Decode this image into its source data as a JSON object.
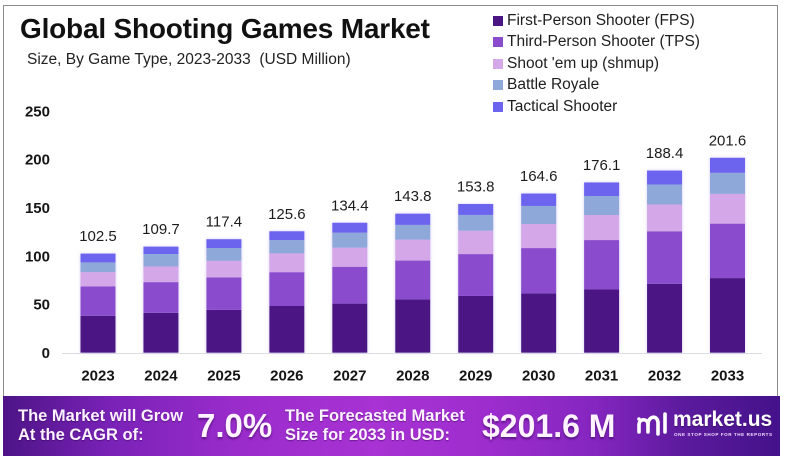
{
  "chart_data": {
    "type": "bar",
    "stacked": true,
    "title": "Global Shooting Games Market",
    "subtitle": "Size, By Game Type, 2023-2033  (USD Million)",
    "xlabel": "",
    "ylabel": "",
    "ylim": [
      0,
      250
    ],
    "yticks": [
      0,
      50,
      100,
      150,
      200,
      250
    ],
    "grid": false,
    "legend_position": "top-right",
    "categories": [
      "2023",
      "2024",
      "2025",
      "2026",
      "2027",
      "2028",
      "2029",
      "2030",
      "2031",
      "2032",
      "2033"
    ],
    "totals": [
      102.5,
      109.7,
      117.4,
      125.6,
      134.4,
      143.8,
      153.8,
      164.6,
      176.1,
      188.4,
      201.6
    ],
    "series": [
      {
        "name": "First-Person Shooter (FPS)",
        "color": "#4b1684",
        "values": [
          38.1,
          41.2,
          44.3,
          48.3,
          50.8,
          55.0,
          58.7,
          61.2,
          65.4,
          71.3,
          77.2
        ]
      },
      {
        "name": "Third-Person Shooter (TPS)",
        "color": "#8a4bcc",
        "values": [
          30.4,
          31.8,
          33.5,
          35.0,
          38.1,
          40.3,
          43.3,
          47.0,
          51.1,
          54.3,
          56.3
        ]
      },
      {
        "name": "Shoot 'em up (shmup)",
        "color": "#d4a8e8",
        "values": [
          14.9,
          16.2,
          17.3,
          19.4,
          19.8,
          21.7,
          24.2,
          24.9,
          25.9,
          27.7,
          30.8
        ]
      },
      {
        "name": "Battle Royale",
        "color": "#8fa8da",
        "values": [
          10.0,
          12.9,
          13.2,
          13.8,
          15.5,
          15.2,
          16.3,
          18.7,
          19.7,
          20.7,
          21.8
        ]
      },
      {
        "name": "Tactical Shooter",
        "color": "#6c64ee",
        "values": [
          9.1,
          7.6,
          9.1,
          9.1,
          10.2,
          11.6,
          11.3,
          12.8,
          14.0,
          14.4,
          15.5
        ]
      }
    ]
  },
  "banner": {
    "cagr_label_line1": "The Market will Grow",
    "cagr_label_line2": "At the CAGR of:",
    "cagr_value": "7.0%",
    "forecast_label_line1": "The Forecasted Market",
    "forecast_label_line2": "Size for 2033 in USD:",
    "forecast_value": "$201.6 M",
    "gradient_colors": [
      "#4d1486",
      "#a832d3",
      "#44128a"
    ]
  },
  "brand": {
    "name": "market.us",
    "tagline": "ONE STOP SHOP FOR THE REPORTS",
    "icon": "market-us-logo-icon"
  }
}
